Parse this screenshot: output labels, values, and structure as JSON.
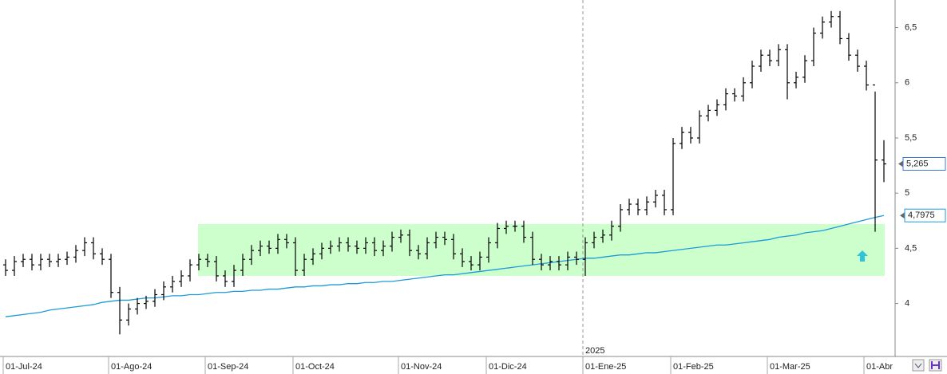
{
  "chart_data": {
    "type": "ohlc",
    "ylim": [
      3.52,
      6.75
    ],
    "yticks": [
      4,
      {
        "value": 4.5,
        "label": "4,5"
      },
      5,
      {
        "value": 5.5,
        "label": "5,5"
      },
      6,
      {
        "value": 6.5,
        "label": "6,5"
      }
    ],
    "categories": [
      "01-Jul-24",
      null,
      null,
      null,
      null,
      null,
      null,
      null,
      null,
      null,
      null,
      null,
      "01-Ago-24",
      null,
      null,
      null,
      null,
      null,
      null,
      null,
      null,
      null,
      null,
      "01-Sep-24",
      null,
      null,
      null,
      null,
      null,
      null,
      null,
      null,
      null,
      "01-Oct-24",
      null,
      null,
      null,
      null,
      null,
      null,
      null,
      null,
      null,
      null,
      null,
      "01-Nov-24",
      null,
      null,
      null,
      null,
      null,
      null,
      null,
      null,
      null,
      "01-Dic-24",
      null,
      null,
      null,
      null,
      null,
      null,
      null,
      null,
      null,
      null,
      "01-Ene-25",
      null,
      null,
      null,
      null,
      null,
      null,
      null,
      null,
      null,
      "01-Feb-25",
      null,
      null,
      null,
      null,
      null,
      null,
      null,
      null,
      null,
      null,
      "01-Mar-25",
      null,
      null,
      null,
      null,
      null,
      null,
      null,
      null,
      null,
      null,
      "01-Abr",
      null,
      null
    ],
    "year_label": "2025",
    "color": "#000000",
    "ohlc": {
      "open": [
        4.35,
        4.3,
        4.38,
        4.4,
        4.35,
        4.4,
        4.38,
        4.4,
        4.42,
        4.48,
        4.55,
        4.45,
        4.4,
        4.1,
        3.85,
        3.95,
        4.0,
        4.02,
        4.08,
        4.15,
        4.2,
        4.25,
        4.35,
        4.4,
        4.38,
        4.25,
        4.2,
        4.3,
        4.4,
        4.48,
        4.52,
        4.5,
        4.58,
        4.55,
        4.3,
        4.4,
        4.45,
        4.5,
        4.52,
        4.55,
        4.52,
        4.5,
        4.55,
        4.48,
        4.52,
        4.6,
        4.62,
        4.48,
        4.45,
        4.55,
        4.6,
        4.58,
        4.45,
        4.38,
        4.35,
        4.42,
        4.55,
        4.68,
        4.7,
        4.7,
        4.6,
        4.4,
        4.35,
        4.38,
        4.35,
        4.42,
        4.4,
        4.55,
        4.6,
        4.62,
        4.7,
        4.85,
        4.9,
        4.85,
        4.92,
        4.98,
        4.85,
        5.45,
        5.55,
        5.5,
        5.7,
        5.75,
        5.8,
        5.9,
        5.88,
        6.0,
        6.15,
        6.25,
        6.2,
        6.3,
        6.0,
        6.05,
        6.2,
        6.45,
        6.55,
        6.6,
        6.4,
        6.25,
        6.15,
        5.98,
        5.3
      ],
      "high": [
        4.4,
        4.43,
        4.45,
        4.45,
        4.45,
        4.45,
        4.45,
        4.47,
        4.53,
        4.6,
        4.6,
        4.5,
        4.45,
        4.15,
        4.0,
        4.05,
        4.07,
        4.13,
        4.2,
        4.25,
        4.3,
        4.4,
        4.45,
        4.45,
        4.43,
        4.3,
        4.35,
        4.45,
        4.53,
        4.57,
        4.57,
        4.63,
        4.63,
        4.6,
        4.45,
        4.5,
        4.55,
        4.57,
        4.6,
        4.6,
        4.57,
        4.6,
        4.6,
        4.57,
        4.65,
        4.67,
        4.67,
        4.53,
        4.6,
        4.65,
        4.65,
        4.63,
        4.5,
        4.43,
        4.47,
        4.6,
        4.73,
        4.75,
        4.75,
        4.75,
        4.65,
        4.45,
        4.43,
        4.43,
        4.47,
        4.47,
        4.6,
        4.65,
        4.67,
        4.75,
        4.9,
        4.95,
        4.95,
        4.97,
        5.03,
        5.03,
        5.5,
        5.6,
        5.6,
        5.75,
        5.8,
        5.85,
        5.95,
        5.95,
        6.05,
        6.2,
        6.3,
        6.3,
        6.35,
        6.35,
        6.1,
        6.25,
        6.5,
        6.6,
        6.65,
        6.65,
        6.45,
        6.3,
        6.2,
        5.92,
        5.48
      ],
      "low": [
        4.25,
        4.25,
        4.33,
        4.3,
        4.3,
        4.33,
        4.33,
        4.35,
        4.37,
        4.43,
        4.4,
        4.35,
        4.05,
        3.72,
        3.8,
        3.9,
        3.95,
        3.97,
        4.03,
        4.1,
        4.15,
        4.2,
        4.3,
        4.33,
        4.2,
        4.15,
        4.15,
        4.25,
        4.35,
        4.43,
        4.45,
        4.45,
        4.5,
        4.25,
        4.25,
        4.35,
        4.4,
        4.45,
        4.47,
        4.47,
        4.45,
        4.45,
        4.43,
        4.43,
        4.47,
        4.55,
        4.43,
        4.4,
        4.4,
        4.5,
        4.53,
        4.4,
        4.33,
        4.3,
        4.3,
        4.37,
        4.5,
        4.63,
        4.65,
        4.55,
        4.35,
        4.3,
        4.3,
        4.3,
        4.3,
        4.35,
        4.25,
        4.5,
        4.55,
        4.57,
        4.65,
        4.8,
        4.8,
        4.8,
        4.87,
        4.8,
        4.8,
        5.4,
        5.45,
        5.45,
        5.65,
        5.7,
        5.75,
        5.83,
        5.83,
        5.95,
        6.1,
        6.15,
        6.15,
        5.85,
        5.95,
        6.0,
        6.15,
        6.4,
        6.5,
        6.35,
        6.2,
        6.1,
        5.93,
        4.65,
        5.1
      ],
      "close": [
        4.3,
        4.38,
        4.4,
        4.35,
        4.4,
        4.38,
        4.4,
        4.42,
        4.48,
        4.55,
        4.45,
        4.4,
        4.1,
        3.85,
        3.95,
        4.0,
        4.02,
        4.08,
        4.15,
        4.2,
        4.25,
        4.35,
        4.4,
        4.38,
        4.25,
        4.2,
        4.3,
        4.4,
        4.48,
        4.52,
        4.5,
        4.58,
        4.55,
        4.3,
        4.4,
        4.45,
        4.5,
        4.52,
        4.55,
        4.52,
        4.5,
        4.55,
        4.48,
        4.52,
        4.6,
        4.62,
        4.48,
        4.45,
        4.55,
        4.6,
        4.58,
        4.45,
        4.38,
        4.35,
        4.42,
        4.55,
        4.68,
        4.7,
        4.7,
        4.6,
        4.4,
        4.35,
        4.38,
        4.35,
        4.42,
        4.4,
        4.55,
        4.6,
        4.62,
        4.7,
        4.85,
        4.9,
        4.85,
        4.92,
        4.98,
        4.85,
        5.45,
        5.55,
        5.5,
        5.7,
        5.75,
        5.8,
        5.9,
        5.88,
        6.0,
        6.15,
        6.25,
        6.2,
        6.3,
        6.0,
        6.05,
        6.2,
        6.45,
        6.55,
        6.6,
        6.4,
        6.25,
        6.15,
        5.98,
        5.3,
        5.265
      ]
    },
    "overlay": {
      "type": "line",
      "color": "#1e9bd7",
      "values": [
        3.88,
        3.89,
        3.9,
        3.91,
        3.92,
        3.94,
        3.95,
        3.96,
        3.97,
        3.98,
        3.99,
        4.01,
        4.02,
        4.03,
        4.03,
        4.04,
        4.05,
        4.05,
        4.06,
        4.07,
        4.07,
        4.08,
        4.08,
        4.09,
        4.1,
        4.1,
        4.11,
        4.11,
        4.12,
        4.12,
        4.13,
        4.13,
        4.14,
        4.15,
        4.15,
        4.16,
        4.16,
        4.17,
        4.17,
        4.18,
        4.18,
        4.19,
        4.19,
        4.2,
        4.2,
        4.21,
        4.22,
        4.23,
        4.24,
        4.25,
        4.26,
        4.26,
        4.27,
        4.28,
        4.29,
        4.3,
        4.31,
        4.32,
        4.33,
        4.34,
        4.35,
        4.36,
        4.37,
        4.38,
        4.39,
        4.4,
        4.41,
        4.41,
        4.42,
        4.43,
        4.44,
        4.44,
        4.45,
        4.46,
        4.46,
        4.47,
        4.48,
        4.49,
        4.5,
        4.51,
        4.52,
        4.53,
        4.53,
        4.54,
        4.55,
        4.56,
        4.57,
        4.58,
        4.6,
        4.61,
        4.62,
        4.64,
        4.65,
        4.66,
        4.68,
        4.7,
        4.72,
        4.74,
        4.76,
        4.78,
        4.7975
      ]
    },
    "zone": {
      "ylim": [
        4.25,
        4.72
      ],
      "color": "#ccffcc"
    },
    "last_price": {
      "value": 5.265,
      "label": "5,265"
    },
    "overlay_last": {
      "value": 4.7975,
      "label": "4,7975"
    }
  }
}
